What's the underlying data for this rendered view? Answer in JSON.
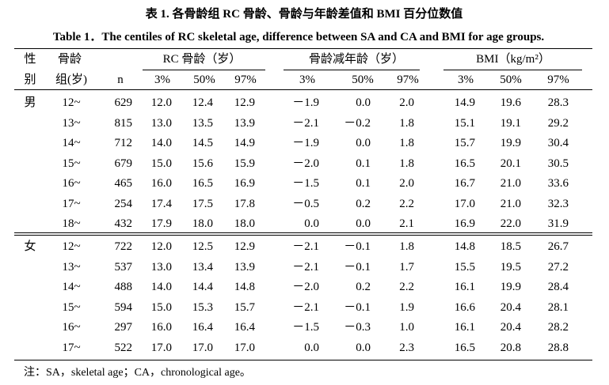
{
  "title_cn": "表 1. 各骨龄组 RC 骨龄、骨龄与年龄差值和 BMI 百分位数值",
  "title_en": "Table 1．The centiles of RC skeletal age, difference between SA and CA and BMI for age groups.",
  "header": {
    "row1": {
      "sex": "性",
      "age": "骨龄",
      "groups": [
        "RC 骨龄（岁）",
        "骨龄减年龄（岁）",
        "BMI（kg/m²）"
      ]
    },
    "row2": {
      "sex": "别",
      "age": "组(岁)",
      "n": "n",
      "percentiles": [
        [
          "3%",
          "50%",
          "97%"
        ],
        [
          "3%",
          "50%",
          "97%"
        ],
        [
          "3%",
          "50%",
          "97%"
        ]
      ]
    }
  },
  "table": {
    "groups": [
      {
        "sex": "男",
        "rows": [
          [
            "12~",
            "629",
            "12.0",
            "12.4",
            "12.9",
            "－1.9",
            "0.0",
            "2.0",
            "14.9",
            "19.6",
            "28.3"
          ],
          [
            "13~",
            "815",
            "13.0",
            "13.5",
            "13.9",
            "－2.1",
            "－0.2",
            "1.8",
            "15.1",
            "19.1",
            "29.2"
          ],
          [
            "14~",
            "712",
            "14.0",
            "14.5",
            "14.9",
            "－1.9",
            "0.0",
            "1.8",
            "15.7",
            "19.9",
            "30.4"
          ],
          [
            "15~",
            "679",
            "15.0",
            "15.6",
            "15.9",
            "－2.0",
            "0.1",
            "1.8",
            "16.5",
            "20.1",
            "30.5"
          ],
          [
            "16~",
            "465",
            "16.0",
            "16.5",
            "16.9",
            "－1.5",
            "0.1",
            "2.0",
            "16.7",
            "21.0",
            "33.6"
          ],
          [
            "17~",
            "254",
            "17.4",
            "17.5",
            "17.8",
            "－0.5",
            "0.2",
            "2.2",
            "17.0",
            "21.0",
            "32.3"
          ],
          [
            "18~",
            "432",
            "17.9",
            "18.0",
            "18.0",
            "0.0",
            "0.0",
            "2.1",
            "16.9",
            "22.0",
            "31.9"
          ]
        ]
      },
      {
        "sex": "女",
        "rows": [
          [
            "12~",
            "722",
            "12.0",
            "12.5",
            "12.9",
            "－2.1",
            "－0.1",
            "1.8",
            "14.8",
            "18.5",
            "26.7"
          ],
          [
            "13~",
            "537",
            "13.0",
            "13.4",
            "13.9",
            "－2.1",
            "－0.1",
            "1.7",
            "15.5",
            "19.5",
            "27.2"
          ],
          [
            "14~",
            "488",
            "14.0",
            "14.4",
            "14.8",
            "－2.0",
            "0.2",
            "2.2",
            "16.1",
            "19.9",
            "28.4"
          ],
          [
            "15~",
            "594",
            "15.0",
            "15.3",
            "15.7",
            "－2.1",
            "－0.1",
            "1.9",
            "16.6",
            "20.4",
            "28.1"
          ],
          [
            "16~",
            "297",
            "16.0",
            "16.4",
            "16.4",
            "－1.5",
            "－0.3",
            "1.0",
            "16.1",
            "20.4",
            "28.2"
          ],
          [
            "17~",
            "522",
            "17.0",
            "17.0",
            "17.0",
            "0.0",
            "0.0",
            "2.3",
            "16.5",
            "20.8",
            "28.8"
          ]
        ]
      }
    ]
  },
  "note": "注：SA，skeletal age；CA，chronological age。"
}
